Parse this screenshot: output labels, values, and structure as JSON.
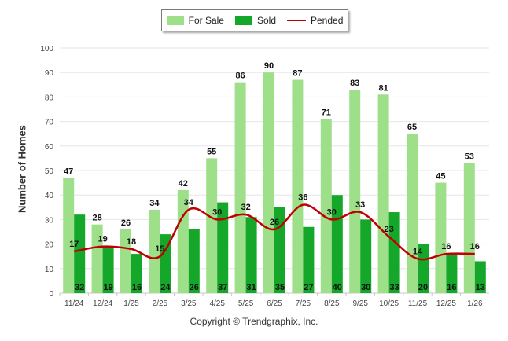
{
  "chart_data": {
    "type": "bar",
    "categories": [
      "11/24",
      "12/24",
      "1/25",
      "2/25",
      "3/25",
      "4/25",
      "5/25",
      "6/25",
      "7/25",
      "8/25",
      "9/25",
      "10/25",
      "11/25",
      "12/25",
      "1/26"
    ],
    "series": [
      {
        "name": "For Sale",
        "type": "bar",
        "color": "#9ee089",
        "values": [
          47,
          28,
          26,
          34,
          42,
          55,
          86,
          90,
          87,
          71,
          83,
          81,
          65,
          45,
          53
        ]
      },
      {
        "name": "Sold",
        "type": "bar",
        "color": "#14a729",
        "values": [
          32,
          19,
          16,
          24,
          26,
          37,
          31,
          35,
          27,
          40,
          30,
          33,
          20,
          16,
          13
        ]
      },
      {
        "name": "Pended",
        "type": "line",
        "color": "#c00000",
        "values": [
          17,
          19,
          18,
          15,
          34,
          30,
          32,
          26,
          36,
          30,
          33,
          23,
          14,
          16,
          16
        ]
      }
    ],
    "title": "",
    "xlabel": "",
    "ylabel": "Number of Homes",
    "ylim": [
      0,
      100
    ],
    "yticks": [
      0,
      10,
      20,
      30,
      40,
      50,
      60,
      70,
      80,
      90,
      100
    ],
    "grid": true,
    "legend": "top-center"
  },
  "legend": {
    "for_sale": "For Sale",
    "sold": "Sold",
    "pended": "Pended"
  },
  "ylabel": "Number of Homes",
  "copyright": "Copyright © Trendgraphix, Inc."
}
